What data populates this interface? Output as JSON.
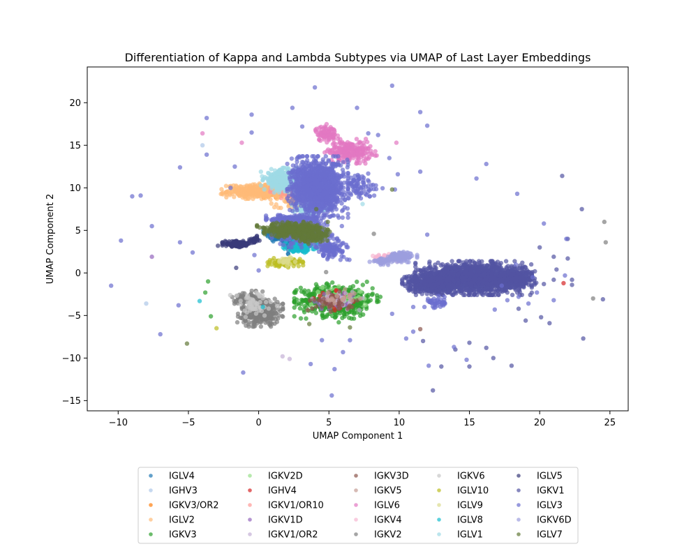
{
  "chart_data": {
    "type": "scatter",
    "title": "Differentiation of Kappa and Lambda Subtypes via UMAP of Last Layer Embeddings",
    "xlabel": "UMAP Component 1",
    "ylabel": "UMAP Component 2",
    "xlim": [
      -12.2,
      26.3
    ],
    "ylim": [
      -16.2,
      24.2
    ],
    "xticks": [
      -10,
      -5,
      0,
      5,
      10,
      15,
      20,
      25
    ],
    "yticks": [
      -15,
      -10,
      -5,
      0,
      5,
      10,
      15,
      20
    ],
    "grid": false,
    "legend_position": "below-center",
    "legend_columns": 5,
    "series": [
      {
        "name": "IGLV4",
        "color": "#1f77b4",
        "clusters": [
          [
            1.6,
            4.5,
            0.7,
            0.6,
            140
          ],
          [
            2.8,
            3.3,
            0.6,
            0.6,
            90
          ]
        ],
        "points": []
      },
      {
        "name": "IGHV3",
        "color": "#aec7e8",
        "clusters": [],
        "points": [
          [
            -8,
            -3.6
          ],
          [
            -4,
            15
          ]
        ]
      },
      {
        "name": "IGKV3/OR2",
        "color": "#ff7f0e",
        "clusters": [
          [
            0.8,
            9.5,
            0.9,
            0.45,
            60
          ]
        ],
        "points": []
      },
      {
        "name": "IGLV2",
        "color": "#ffbb78",
        "clusters": [
          [
            0.2,
            9.6,
            1.6,
            0.5,
            380
          ],
          [
            3,
            8.3,
            1.2,
            0.4,
            120
          ]
        ],
        "points": []
      },
      {
        "name": "IGKV3",
        "color": "#2ca02c",
        "clusters": [
          [
            5.6,
            -3.2,
            1.7,
            1.2,
            520
          ]
        ],
        "points": [
          [
            5.7,
            -5.8
          ],
          [
            -3.6,
            -1
          ],
          [
            -3.8,
            -2.3
          ],
          [
            -3.4,
            -5.1
          ]
        ]
      },
      {
        "name": "IGKV2D",
        "color": "#98df8a",
        "clusters": [
          [
            5.5,
            -3.0,
            1.2,
            0.8,
            50
          ]
        ],
        "points": []
      },
      {
        "name": "IGHV4",
        "color": "#d62728",
        "clusters": [
          [
            5.4,
            -3.3,
            0.9,
            0.7,
            30
          ]
        ],
        "points": [
          [
            21.7,
            -1.2
          ],
          [
            5.7,
            -2.6
          ]
        ]
      },
      {
        "name": "IGKV1/OR10",
        "color": "#ff9896",
        "clusters": [
          [
            2,
            9.5,
            1.2,
            0.4,
            30
          ]
        ],
        "points": []
      },
      {
        "name": "IGKV1D",
        "color": "#9467bd",
        "clusters": [
          [
            5.5,
            -3.3,
            1.0,
            0.7,
            40
          ]
        ],
        "points": [
          [
            -7.6,
            1.9
          ]
        ]
      },
      {
        "name": "IGKV1/OR2",
        "color": "#c5b0d5",
        "clusters": [
          [
            5.6,
            -3.1,
            1.0,
            0.7,
            30
          ]
        ],
        "points": [
          [
            1.7,
            -9.8
          ],
          [
            2.2,
            -10.1
          ]
        ]
      },
      {
        "name": "IGKV3D",
        "color": "#8c564b",
        "clusters": [
          [
            5.3,
            -3.4,
            1.0,
            0.7,
            40
          ]
        ],
        "points": [
          [
            11.5,
            -6.6
          ]
        ]
      },
      {
        "name": "IGKV5",
        "color": "#c49c94",
        "clusters": [
          [
            5.8,
            -3,
            0.8,
            0.6,
            20
          ]
        ],
        "points": []
      },
      {
        "name": "IGLV6",
        "color": "#e377c2",
        "clusters": [
          [
            6.5,
            14.3,
            1.0,
            0.8,
            220
          ],
          [
            4.8,
            16.4,
            0.5,
            0.6,
            80
          ]
        ],
        "points": [
          [
            -4,
            16.4
          ],
          [
            -1.2,
            15.3
          ],
          [
            9.8,
            15.3
          ],
          [
            7.2,
            12.9
          ],
          [
            8.4,
            13.8
          ]
        ]
      },
      {
        "name": "IGKV4",
        "color": "#f7b6d2",
        "clusters": [
          [
            9.2,
            1.9,
            0.7,
            0.3,
            40
          ]
        ],
        "points": []
      },
      {
        "name": "IGKV2",
        "color": "#7f7f7f",
        "clusters": [
          [
            0.1,
            -4.5,
            0.9,
            1.0,
            380
          ],
          [
            -0.8,
            -3.0,
            0.6,
            0.5,
            80
          ]
        ],
        "points": [
          [
            23.8,
            -3.0
          ],
          [
            24.6,
            6.0
          ],
          [
            24.7,
            3.6
          ],
          [
            8.2,
            4.6
          ],
          [
            4.8,
            0.1
          ]
        ]
      },
      {
        "name": "IGKV6",
        "color": "#c7c7c7",
        "clusters": [
          [
            -0.4,
            -3.8,
            1.0,
            1.0,
            60
          ]
        ],
        "points": []
      },
      {
        "name": "IGLV10",
        "color": "#bcbd22",
        "clusters": [
          [
            1.9,
            1.2,
            0.7,
            0.3,
            100
          ]
        ],
        "points": [
          [
            -3,
            -6.5
          ],
          [
            0.8,
            1.5
          ]
        ]
      },
      {
        "name": "IGLV9",
        "color": "#dbdb8d",
        "clusters": [
          [
            2.0,
            1.4,
            0.5,
            0.3,
            20
          ]
        ],
        "points": []
      },
      {
        "name": "IGLV8",
        "color": "#17becf",
        "clusters": [
          [
            3.0,
            3.1,
            0.7,
            0.4,
            120
          ]
        ],
        "points": [
          [
            -4.2,
            -3.3
          ],
          [
            0.3,
            -4.0
          ]
        ]
      },
      {
        "name": "IGLV1",
        "color": "#9edae5",
        "clusters": [
          [
            1.6,
            10.9,
            0.8,
            0.8,
            300
          ],
          [
            3.8,
            7.6,
            0.8,
            0.5,
            120
          ]
        ],
        "points": [
          [
            7.4,
            8.1
          ]
        ]
      },
      {
        "name": "IGLV5",
        "color": "#393b79",
        "clusters": [
          [
            -1.5,
            3.4,
            0.6,
            0.2,
            140
          ],
          [
            -0.3,
            3.9,
            0.2,
            0.25,
            30
          ]
        ],
        "points": [
          [
            -2.9,
            3.2
          ],
          [
            -1.6,
            0.6
          ]
        ]
      },
      {
        "name": "IGKV1",
        "color": "#5254a3",
        "clusters": [
          [
            15.3,
            -0.6,
            2.3,
            1.1,
            1700
          ],
          [
            12.2,
            -1.2,
            1.1,
            0.7,
            420
          ],
          [
            18.2,
            -0.6,
            0.9,
            0.6,
            250
          ]
        ],
        "points": [
          [
            20.3,
            -1.3
          ],
          [
            21,
            -0.8
          ],
          [
            22.3,
            -1.4
          ],
          [
            20.1,
            -5.2
          ],
          [
            20.7,
            -5.9
          ],
          [
            18.5,
            -4.2
          ],
          [
            19,
            -5.6
          ],
          [
            20,
            3.0
          ],
          [
            19.4,
            1.0
          ],
          [
            21.2,
            0.4
          ],
          [
            22,
            1.7
          ],
          [
            13,
            -11
          ],
          [
            14,
            -9
          ],
          [
            15,
            -8.2
          ],
          [
            16.2,
            -8.8
          ],
          [
            18,
            -10.9
          ],
          [
            15,
            -11
          ],
          [
            12.4,
            -13.8
          ],
          [
            11.7,
            -8.0
          ],
          [
            16.7,
            -10
          ],
          [
            21,
            1.9
          ],
          [
            23,
            7.5
          ],
          [
            24.5,
            -3.1
          ],
          [
            23.1,
            -7.7
          ],
          [
            21.6,
            11.4
          ],
          [
            22,
            4
          ],
          [
            22.3,
            -0.8
          ]
        ]
      },
      {
        "name": "IGLV3",
        "color": "#6b6ecf",
        "clusters": [
          [
            4.2,
            10.1,
            1.2,
            2.0,
            1300
          ],
          [
            2.5,
            6.3,
            1.1,
            0.3,
            180
          ],
          [
            3.4,
            4.8,
            1.4,
            1.1,
            240
          ],
          [
            5.2,
            2.8,
            0.7,
            0.7,
            120
          ],
          [
            7.2,
            10.1,
            0.9,
            0.9,
            80
          ],
          [
            12.7,
            -3.4,
            0.5,
            0.5,
            40
          ]
        ],
        "points": [
          [
            -10.5,
            -1.5
          ],
          [
            -9.8,
            3.8
          ],
          [
            -9,
            9
          ],
          [
            -8.4,
            9.1
          ],
          [
            -7.6,
            5.5
          ],
          [
            -7,
            -7.2
          ],
          [
            -5.6,
            12.4
          ],
          [
            -5.7,
            -3.8
          ],
          [
            -5.6,
            3.6
          ],
          [
            -4.7,
            2.4
          ],
          [
            -3.7,
            13.9
          ],
          [
            -3.7,
            18.2
          ],
          [
            -1.7,
            12.5
          ],
          [
            -2,
            10
          ],
          [
            -0.5,
            18.6
          ],
          [
            -0.5,
            16.5
          ],
          [
            2.4,
            19.4
          ],
          [
            3.1,
            17.2
          ],
          [
            4,
            21.8
          ],
          [
            7,
            19.4
          ],
          [
            9.5,
            22
          ],
          [
            11.5,
            18.9
          ],
          [
            12,
            17.3
          ],
          [
            11.5,
            11.9
          ],
          [
            9.9,
            11.6
          ],
          [
            9.7,
            9.8
          ],
          [
            9.3,
            13.5
          ],
          [
            7.8,
            16.4
          ],
          [
            8.5,
            16.2
          ],
          [
            11,
            -6.9
          ],
          [
            11,
            -4
          ],
          [
            9.5,
            -4.8
          ],
          [
            12,
            4.5
          ],
          [
            15.5,
            11.1
          ],
          [
            16.2,
            12.8
          ],
          [
            18.4,
            9.3
          ],
          [
            20.3,
            5.8
          ],
          [
            21.9,
            4
          ],
          [
            21.8,
            -0.3
          ],
          [
            6.5,
            -7.9
          ],
          [
            6,
            -9.3
          ],
          [
            5.4,
            -11.3
          ],
          [
            5.2,
            -14.4
          ],
          [
            4.5,
            -7.9
          ],
          [
            3.7,
            -10.7
          ],
          [
            -1.1,
            -11.7
          ],
          [
            -0.3,
            2.1
          ],
          [
            0,
            0.3
          ],
          [
            10.5,
            -7.7
          ],
          [
            12.1,
            -10.9
          ],
          [
            13.9,
            -8.7
          ],
          [
            14.8,
            -10.2
          ],
          [
            16.8,
            -4.3
          ],
          [
            17.7,
            -3.2
          ],
          [
            17.3,
            -1.5
          ],
          [
            18.3,
            1.0
          ],
          [
            19.5,
            -0.5
          ],
          [
            18.5,
            -2.8
          ],
          [
            19.2,
            -3.6
          ],
          [
            21,
            -3.2
          ],
          [
            19.8,
            -2.3
          ]
        ]
      },
      {
        "name": "IGKV6D",
        "color": "#9c9ede",
        "clusters": [
          [
            10.2,
            1.9,
            0.6,
            0.35,
            110
          ],
          [
            8.8,
            1.3,
            0.5,
            0.3,
            40
          ]
        ],
        "points": []
      },
      {
        "name": "IGLV7",
        "color": "#637939",
        "clusters": [
          [
            2.4,
            5.1,
            1.4,
            0.5,
            380
          ],
          [
            3.8,
            4.2,
            0.7,
            0.5,
            90
          ]
        ],
        "points": [
          [
            -5.1,
            -8.3
          ],
          [
            3.6,
            -6
          ],
          [
            6.5,
            -6.4
          ],
          [
            9.5,
            9.8
          ],
          [
            4.1,
            7.5
          ]
        ]
      }
    ]
  }
}
